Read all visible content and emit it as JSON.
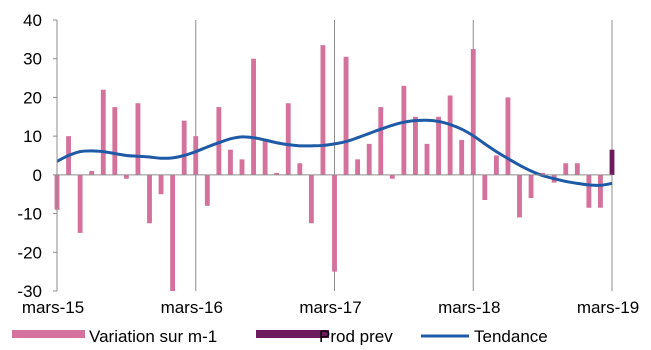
{
  "chart_data": {
    "type": "bar",
    "x_tick_labels": [
      "mars-15",
      "mars-16",
      "mars-17",
      "mars-18",
      "mars-19"
    ],
    "x_tick_indices": [
      0,
      12,
      24,
      36,
      48
    ],
    "y_ticks": [
      40,
      30,
      20,
      10,
      0,
      -10,
      -20,
      -30
    ],
    "ylim": [
      -30,
      40
    ],
    "grid": "vertical-at-x-ticks",
    "legend_position": "bottom",
    "series": [
      {
        "name": "Variation sur m-1",
        "type": "bar",
        "color": "#d4729c",
        "values": [
          -9,
          10,
          -15,
          1,
          22,
          17.5,
          -1,
          18.5,
          -12.5,
          -5,
          -30,
          14,
          10,
          -8,
          17.5,
          6.5,
          4,
          30,
          9,
          0.5,
          18.5,
          3,
          -12.5,
          33.5,
          -25,
          30.5,
          4,
          8,
          17.5,
          -1,
          23,
          15,
          8,
          15,
          20.5,
          9,
          32.5,
          -6.5,
          5,
          20,
          -11,
          -6,
          0.5,
          -2,
          3,
          3,
          -8.5,
          -8.5,
          null
        ]
      },
      {
        "name": "Prod prev",
        "type": "bar",
        "color": "#6e1a5e",
        "values": [
          null,
          null,
          null,
          null,
          null,
          null,
          null,
          null,
          null,
          null,
          null,
          null,
          null,
          null,
          null,
          null,
          null,
          null,
          null,
          null,
          null,
          null,
          null,
          null,
          null,
          null,
          null,
          null,
          null,
          null,
          null,
          null,
          null,
          null,
          null,
          null,
          null,
          null,
          null,
          null,
          null,
          null,
          null,
          null,
          null,
          null,
          null,
          null,
          6.5
        ]
      },
      {
        "name": "Tendance",
        "type": "line",
        "color": "#1f5aa6",
        "values": [
          3.5,
          5,
          6,
          6.2,
          6,
          5.5,
          5,
          4.8,
          4.6,
          4.3,
          4.4,
          5,
          6,
          7.2,
          8.3,
          9.3,
          9.8,
          9.6,
          9,
          8.3,
          7.8,
          7.5,
          7.5,
          7.6,
          8,
          8.6,
          9.6,
          10.7,
          11.8,
          12.8,
          13.6,
          14,
          14.1,
          13.8,
          13,
          11.8,
          10.1,
          8,
          6,
          4.2,
          2.5,
          1,
          -0.2,
          -1,
          -1.7,
          -2.2,
          -2.6,
          -2.7,
          -2.2
        ]
      }
    ]
  }
}
